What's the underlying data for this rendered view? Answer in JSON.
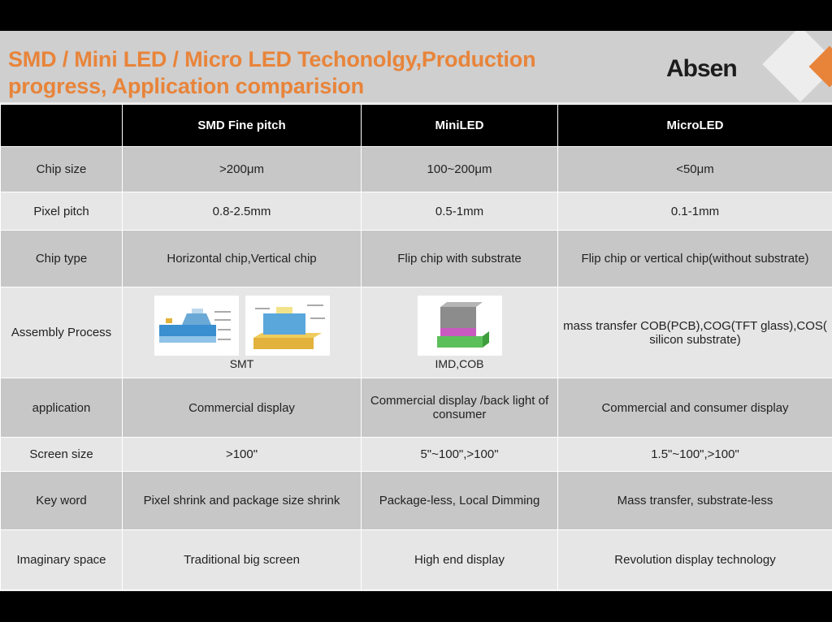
{
  "slide": {
    "title": "SMD / Mini LED / Micro LED Techonolgy,Production progress, Application comparision",
    "logo_text": "Absen"
  },
  "table": {
    "headers": [
      "",
      "SMD Fine pitch",
      "MiniLED",
      "MicroLED"
    ],
    "rows": [
      {
        "label": "Chip size",
        "cells": [
          ">200μm",
          "100~200μm",
          "<50μm"
        ]
      },
      {
        "label": "Pixel pitch",
        "cells": [
          "0.8-2.5mm",
          "0.5-1mm",
          "0.1-1mm"
        ]
      },
      {
        "label": "Chip type",
        "cells": [
          "Horizontal chip,Vertical chip",
          "Flip chip with substrate",
          "Flip chip or vertical chip(without substrate)"
        ]
      },
      {
        "label": "Assembly Process",
        "cells": [
          "SMT",
          "IMD,COB",
          "mass transfer COB(PCB),COG(TFT glass),COS( silicon substrate)"
        ]
      },
      {
        "label": "application",
        "cells": [
          "Commercial display",
          "Commercial display /back light of consumer",
          "Commercial and consumer display"
        ]
      },
      {
        "label": "Screen size",
        "cells": [
          ">100\"",
          "5\"~100\",>100\"",
          "1.5\"~100\",>100\""
        ]
      },
      {
        "label": "Key word",
        "cells": [
          "Pixel shrink and package size shrink",
          "Package-less, Local Dimming",
          "Mass transfer, substrate-less"
        ]
      },
      {
        "label": "Imaginary space",
        "cells": [
          "Traditional big screen",
          "High end display",
          "Revolution display technology"
        ]
      }
    ]
  },
  "colors": {
    "accent": "#e8843a",
    "header_bg": "#cfcfcf",
    "table_head_bg": "#000000",
    "row_dark": "#c7c7c7",
    "row_light": "#e6e6e6"
  },
  "icons": {
    "smt_figure_1": "led-chip-diagram-icon",
    "smt_figure_2": "led-package-diagram-icon",
    "imd_figure": "imd-package-diagram-icon"
  }
}
